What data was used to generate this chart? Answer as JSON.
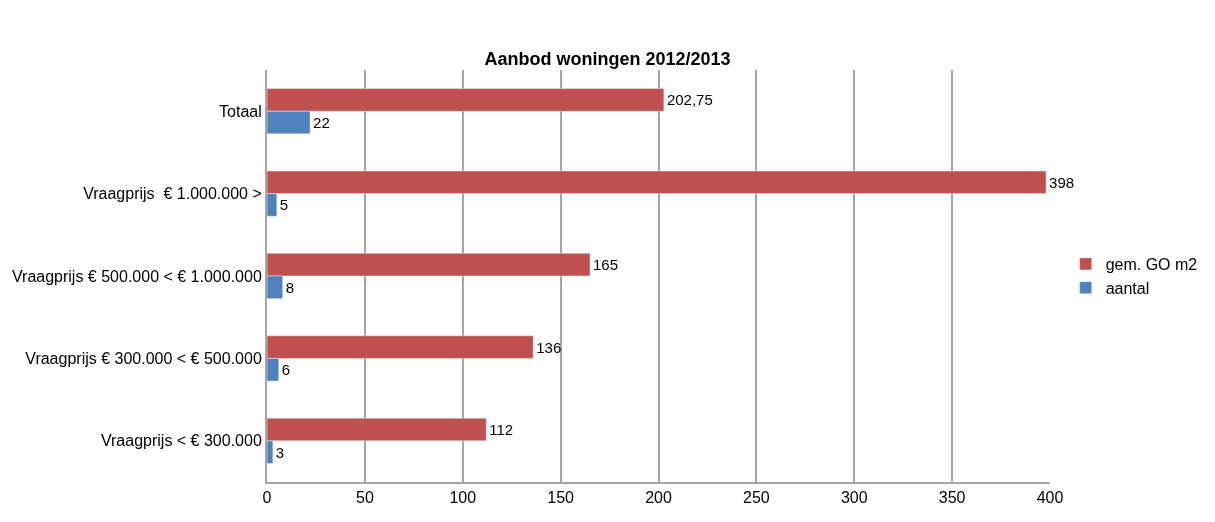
{
  "chart_data": {
    "type": "bar",
    "orientation": "horizontal",
    "title": "Aanbod woningen 2012/2013",
    "categories": [
      "Totaal",
      "Vraagprijs  € 1.000.000 >",
      "Vraagprijs € 500.000 < € 1.000.000",
      "Vraagprijs € 300.000 < € 500.000",
      "Vraagprijs < € 300.000"
    ],
    "series": [
      {
        "name": "gem. GO m2",
        "color": "#c0504d",
        "values": [
          202.75,
          398,
          165,
          136,
          112
        ],
        "value_labels": [
          "202,75",
          "398",
          "165",
          "136",
          "112"
        ]
      },
      {
        "name": "aantal",
        "color": "#4f81bd",
        "values": [
          22,
          5,
          8,
          6,
          3
        ],
        "value_labels": [
          "22",
          "5",
          "8",
          "6",
          "3"
        ]
      }
    ],
    "xlim": [
      0,
      400
    ],
    "xticks": [
      0,
      50,
      100,
      150,
      200,
      250,
      300,
      350,
      400
    ],
    "grid": "x",
    "legend": "right"
  }
}
